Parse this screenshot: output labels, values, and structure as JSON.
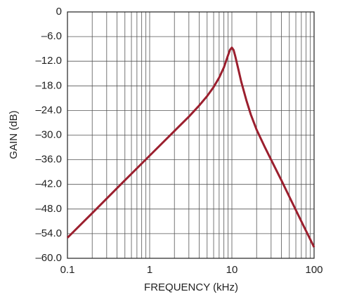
{
  "chart_data": {
    "type": "line",
    "x_label": "FREQUENCY (kHz)",
    "y_label": "GAIN (dB)",
    "x_scale": "log",
    "x": [
      0.1,
      0.2,
      0.5,
      1,
      2,
      3,
      4,
      5,
      6,
      7,
      8,
      9,
      9.5,
      10,
      10.5,
      11,
      12,
      13,
      15,
      17,
      20,
      25,
      30,
      40,
      50,
      70,
      100
    ],
    "series": [
      {
        "name": "Gain",
        "color": "#9b1f2e",
        "values": [
          -55,
          -49,
          -41,
          -35,
          -29,
          -25.5,
          -22.8,
          -20.5,
          -18.3,
          -16,
          -13.5,
          -10.5,
          -9.2,
          -8.7,
          -9.3,
          -10.8,
          -14,
          -17,
          -21.5,
          -25,
          -28.7,
          -32.8,
          -36,
          -41,
          -45,
          -51,
          -57.3
        ]
      }
    ],
    "xlim": [
      0.1,
      100
    ],
    "ylim": [
      -60,
      0
    ],
    "xticks": [
      0.1,
      1,
      10,
      100
    ],
    "x_minor_ticks": [
      0.2,
      0.3,
      0.4,
      0.5,
      0.6,
      0.7,
      0.8,
      0.9,
      2,
      3,
      4,
      5,
      6,
      7,
      8,
      9,
      20,
      30,
      40,
      50,
      60,
      70,
      80,
      90
    ],
    "yticks": [
      0,
      {
        "value": -6,
        "label": "–6.0"
      },
      {
        "value": -12,
        "label": "–12.0"
      },
      {
        "value": -18,
        "label": "–18.0"
      },
      {
        "value": -24,
        "label": "–24.0"
      },
      {
        "value": -30,
        "label": "–30.0"
      },
      {
        "value": -36,
        "label": "–36.0"
      },
      {
        "value": -42,
        "label": "–42.0"
      },
      {
        "value": -48,
        "label": "–48.0"
      },
      {
        "value": -54,
        "label": "–54.0"
      },
      {
        "value": -60,
        "label": "–60.0"
      }
    ],
    "grid": true
  }
}
